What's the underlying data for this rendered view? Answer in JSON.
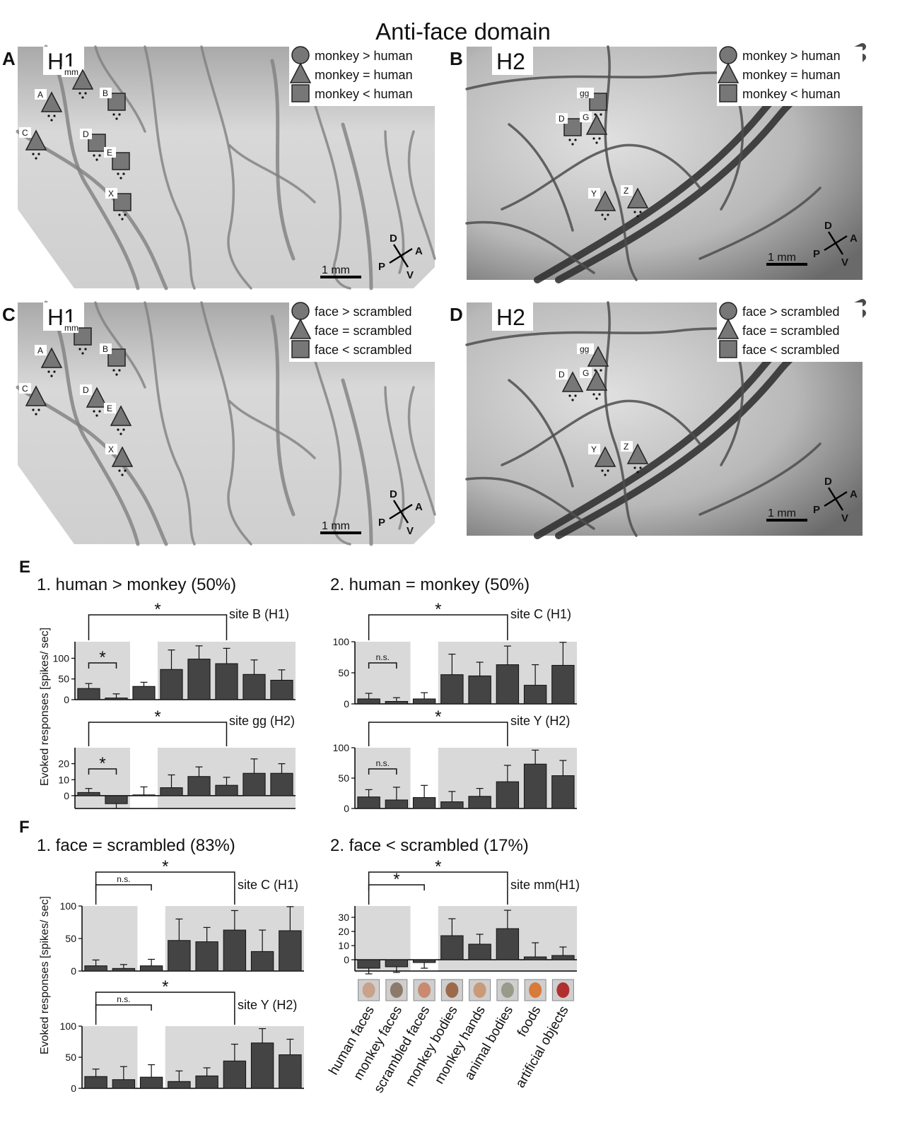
{
  "figure_title": "Anti-face  domain",
  "map_panels": [
    {
      "letter": "A",
      "hemisphere": "H1",
      "legend": [
        "monkey > human",
        "monkey = human",
        "monkey < human"
      ],
      "scale_label": "1 mm",
      "compass": {
        "d": "D",
        "v": "V",
        "a": "A",
        "p": "P"
      },
      "sites": [
        {
          "label": "mm",
          "shape": "triangle"
        },
        {
          "label": "A",
          "shape": "triangle"
        },
        {
          "label": "B",
          "shape": "square"
        },
        {
          "label": "C",
          "shape": "triangle"
        },
        {
          "label": "D",
          "shape": "square"
        },
        {
          "label": "E",
          "shape": "square"
        },
        {
          "label": "X",
          "shape": "square"
        }
      ]
    },
    {
      "letter": "B",
      "hemisphere": "H2",
      "legend": [
        "monkey > human",
        "monkey = human",
        "monkey < human"
      ],
      "scale_label": "1 mm",
      "compass": {
        "d": "D",
        "v": "V",
        "a": "A",
        "p": "P"
      },
      "sites": [
        {
          "label": "gg",
          "shape": "square"
        },
        {
          "label": "D",
          "shape": "square"
        },
        {
          "label": "G",
          "shape": "triangle"
        },
        {
          "label": "Y",
          "shape": "triangle"
        },
        {
          "label": "Z",
          "shape": "triangle"
        }
      ]
    },
    {
      "letter": "C",
      "hemisphere": "H1",
      "legend": [
        "face > scrambled",
        "face = scrambled",
        "face < scrambled"
      ],
      "scale_label": "1 mm",
      "compass": {
        "d": "D",
        "v": "V",
        "a": "A",
        "p": "P"
      },
      "sites": [
        {
          "label": "mm",
          "shape": "square"
        },
        {
          "label": "A",
          "shape": "triangle"
        },
        {
          "label": "B",
          "shape": "square"
        },
        {
          "label": "C",
          "shape": "triangle"
        },
        {
          "label": "D",
          "shape": "triangle"
        },
        {
          "label": "E",
          "shape": "triangle"
        },
        {
          "label": "X",
          "shape": "triangle"
        }
      ]
    },
    {
      "letter": "D",
      "hemisphere": "H2",
      "legend": [
        "face > scrambled",
        "face = scrambled",
        "face < scrambled"
      ],
      "scale_label": "1 mm",
      "compass": {
        "d": "D",
        "v": "V",
        "a": "A",
        "p": "P"
      },
      "sites": [
        {
          "label": "gg",
          "shape": "triangle"
        },
        {
          "label": "D",
          "shape": "triangle"
        },
        {
          "label": "G",
          "shape": "triangle"
        },
        {
          "label": "Y",
          "shape": "triangle"
        },
        {
          "label": "Z",
          "shape": "triangle"
        }
      ]
    }
  ],
  "response_panels": {
    "E": {
      "letter": "E",
      "col1_title": "1.  human > monkey   (50%)",
      "col2_title": "2.  human = monkey   (50%)"
    },
    "F": {
      "letter": "F",
      "col1_title": "1.  face = scrambled   (83%)",
      "col2_title": "2.  face < scrambled   (17%)"
    }
  },
  "ylabel": "Evoked  responses  [spikes/ sec]",
  "sig": {
    "star": "*",
    "ns": "n.s."
  },
  "categories": [
    "human  faces",
    "monkey  faces",
    "scrambled  faces",
    "monkey  bodies",
    "monkey  hands",
    "animal  bodies",
    "foods",
    "artificial  objects"
  ],
  "chart_data": [
    {
      "type": "bar",
      "id": "E1-top",
      "site_label": "site  B   (H1)",
      "categories": [
        "human faces",
        "monkey faces",
        "scrambled faces",
        "monkey bodies",
        "monkey hands",
        "animal bodies",
        "foods",
        "artificial objects"
      ],
      "values": [
        27,
        4,
        32,
        73,
        98,
        87,
        61,
        47
      ],
      "errors": [
        12,
        10,
        10,
        47,
        32,
        37,
        35,
        25
      ],
      "yticks": [
        0,
        50,
        100
      ],
      "ylim": [
        0,
        140
      ],
      "brackets": [
        {
          "from": 0,
          "to": 1,
          "text": "*"
        },
        {
          "from": 0,
          "to": 5,
          "text": "*"
        }
      ]
    },
    {
      "type": "bar",
      "id": "E1-bottom",
      "site_label": "site   gg   (H2)",
      "categories": [
        "human faces",
        "monkey faces",
        "scrambled faces",
        "monkey bodies",
        "monkey hands",
        "animal bodies",
        "foods",
        "artificial objects"
      ],
      "values": [
        2,
        -5,
        0.5,
        5,
        12,
        6.5,
        14,
        14
      ],
      "errors": [
        2.5,
        3,
        5,
        8,
        6,
        5,
        9,
        6
      ],
      "yticks": [
        0,
        10,
        20
      ],
      "ylim": [
        -8,
        30
      ],
      "brackets": [
        {
          "from": 0,
          "to": 1,
          "text": "*"
        },
        {
          "from": 0,
          "to": 5,
          "text": "*"
        }
      ]
    },
    {
      "type": "bar",
      "id": "E2-top",
      "site_label": "site   C   (H1)",
      "categories": [
        "human faces",
        "monkey faces",
        "scrambled faces",
        "monkey bodies",
        "monkey hands",
        "animal bodies",
        "foods",
        "artificial objects"
      ],
      "values": [
        8,
        4,
        8,
        47,
        45,
        63,
        30,
        62
      ],
      "errors": [
        9,
        6,
        10,
        33,
        22,
        30,
        33,
        37
      ],
      "yticks": [
        0,
        50,
        100
      ],
      "ylim": [
        0,
        100
      ],
      "brackets": [
        {
          "from": 0,
          "to": 1,
          "text": "n.s."
        },
        {
          "from": 0,
          "to": 5,
          "text": "*"
        }
      ]
    },
    {
      "type": "bar",
      "id": "E2-bottom",
      "site_label": "site   Y   (H2)",
      "categories": [
        "human faces",
        "monkey faces",
        "scrambled faces",
        "monkey bodies",
        "monkey hands",
        "animal bodies",
        "foods",
        "artificial objects"
      ],
      "values": [
        19,
        14,
        18,
        11,
        20,
        44,
        73,
        54
      ],
      "errors": [
        12,
        21,
        20,
        17,
        13,
        27,
        23,
        25
      ],
      "yticks": [
        0,
        50,
        100
      ],
      "ylim": [
        0,
        100
      ],
      "brackets": [
        {
          "from": 0,
          "to": 1,
          "text": "n.s."
        },
        {
          "from": 0,
          "to": 5,
          "text": "*"
        }
      ]
    },
    {
      "type": "bar",
      "id": "F1-top",
      "site_label": "site   C   (H1)",
      "categories": [
        "human faces",
        "monkey faces",
        "scrambled faces",
        "monkey bodies",
        "monkey hands",
        "animal bodies",
        "foods",
        "artificial objects"
      ],
      "values": [
        8,
        4,
        8,
        47,
        45,
        63,
        30,
        62
      ],
      "errors": [
        9,
        6,
        10,
        33,
        22,
        30,
        33,
        37
      ],
      "yticks": [
        0,
        50,
        100
      ],
      "ylim": [
        0,
        100
      ],
      "brackets": [
        {
          "from": 0,
          "to": 2,
          "text": "n.s."
        },
        {
          "from": 0,
          "to": 5,
          "text": "*"
        }
      ]
    },
    {
      "type": "bar",
      "id": "F1-bottom",
      "site_label": "site   Y   (H2)",
      "categories": [
        "human faces",
        "monkey faces",
        "scrambled faces",
        "monkey bodies",
        "monkey hands",
        "animal bodies",
        "foods",
        "artificial objects"
      ],
      "values": [
        19,
        14,
        18,
        11,
        20,
        44,
        73,
        54
      ],
      "errors": [
        12,
        21,
        20,
        17,
        13,
        27,
        23,
        25
      ],
      "yticks": [
        0,
        50,
        100
      ],
      "ylim": [
        0,
        100
      ],
      "brackets": [
        {
          "from": 0,
          "to": 2,
          "text": "n.s."
        },
        {
          "from": 0,
          "to": 5,
          "text": "*"
        }
      ]
    },
    {
      "type": "bar",
      "id": "F2",
      "site_label": "site   mm(H1)",
      "categories": [
        "human faces",
        "monkey faces",
        "scrambled faces",
        "monkey bodies",
        "monkey hands",
        "animal bodies",
        "foods",
        "artificial objects"
      ],
      "values": [
        -6,
        -5,
        -2,
        17,
        11,
        22,
        2,
        3
      ],
      "errors": [
        4,
        4,
        4,
        12,
        7,
        13,
        10,
        6
      ],
      "yticks": [
        0,
        10,
        20,
        30
      ],
      "ylim": [
        -8,
        38
      ],
      "brackets": [
        {
          "from": 0,
          "to": 2,
          "text": "*"
        },
        {
          "from": 0,
          "to": 5,
          "text": "*"
        }
      ]
    }
  ]
}
